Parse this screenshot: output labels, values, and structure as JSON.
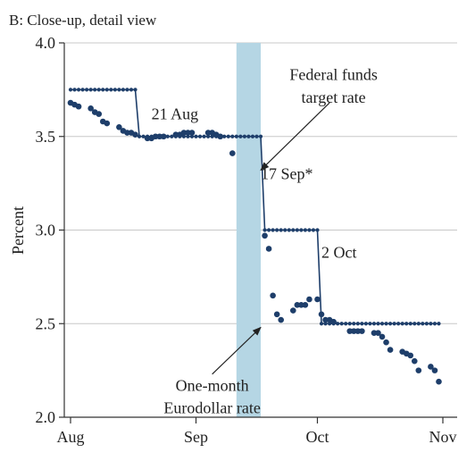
{
  "chart_data": {
    "type": "line",
    "title": "B: Close-up, detail view",
    "ylabel": "Percent",
    "xlabel": "",
    "x_axis_type": "date",
    "xlim": [
      "2007-08-01",
      "2007-11-01"
    ],
    "ylim": [
      2.0,
      4.0
    ],
    "x_tick_labels": [
      {
        "label": "Aug",
        "date": "2007-08-01"
      },
      {
        "label": "Sep",
        "date": "2007-09-01"
      },
      {
        "label": "Oct",
        "date": "2007-10-01"
      },
      {
        "label": "Nov",
        "date": "2007-11-01"
      }
    ],
    "y_ticks": [
      2.0,
      2.5,
      3.0,
      3.5,
      4.0
    ],
    "y_tick_labels": [
      "2.0",
      "2.5",
      "3.0",
      "3.5",
      "4.0"
    ],
    "grid": true,
    "shaded_region": {
      "start": "2007-09-11",
      "end": "2007-09-17",
      "color": "#b5d6e4"
    },
    "colors": {
      "series": "#1e3e6a",
      "shade": "#b5d6e4",
      "axis": "#333333",
      "grid": "#c8c8c8"
    },
    "series": [
      {
        "name": "Federal funds target rate",
        "style": "line-with-markers",
        "steps": [
          {
            "from": "2007-08-01",
            "to": "2007-08-17",
            "value": 3.75
          },
          {
            "from": "2007-08-18",
            "to": "2007-09-17",
            "value": 3.5
          },
          {
            "from": "2007-09-18",
            "to": "2007-10-01",
            "value": 3.0
          },
          {
            "from": "2007-10-02",
            "to": "2007-10-31",
            "value": 2.5
          }
        ]
      },
      {
        "name": "One-month Eurodollar rate",
        "style": "scatter",
        "points": [
          [
            "2007-08-01",
            3.68
          ],
          [
            "2007-08-02",
            3.67
          ],
          [
            "2007-08-03",
            3.66
          ],
          [
            "2007-08-06",
            3.65
          ],
          [
            "2007-08-07",
            3.63
          ],
          [
            "2007-08-08",
            3.62
          ],
          [
            "2007-08-09",
            3.58
          ],
          [
            "2007-08-10",
            3.57
          ],
          [
            "2007-08-13",
            3.55
          ],
          [
            "2007-08-14",
            3.53
          ],
          [
            "2007-08-15",
            3.52
          ],
          [
            "2007-08-16",
            3.52
          ],
          [
            "2007-08-17",
            3.51
          ],
          [
            "2007-08-20",
            3.49
          ],
          [
            "2007-08-21",
            3.49
          ],
          [
            "2007-08-22",
            3.5
          ],
          [
            "2007-08-23",
            3.5
          ],
          [
            "2007-08-24",
            3.5
          ],
          [
            "2007-08-27",
            3.51
          ],
          [
            "2007-08-28",
            3.51
          ],
          [
            "2007-08-29",
            3.52
          ],
          [
            "2007-08-30",
            3.52
          ],
          [
            "2007-08-31",
            3.52
          ],
          [
            "2007-09-04",
            3.52
          ],
          [
            "2007-09-05",
            3.52
          ],
          [
            "2007-09-06",
            3.51
          ],
          [
            "2007-09-07",
            3.5
          ],
          [
            "2007-09-10",
            3.41
          ],
          [
            "2007-09-18",
            2.97
          ],
          [
            "2007-09-19",
            2.9
          ],
          [
            "2007-09-20",
            2.65
          ],
          [
            "2007-09-21",
            2.55
          ],
          [
            "2007-09-22",
            2.52
          ],
          [
            "2007-09-25",
            2.57
          ],
          [
            "2007-09-26",
            2.6
          ],
          [
            "2007-09-27",
            2.6
          ],
          [
            "2007-09-28",
            2.6
          ],
          [
            "2007-09-29",
            2.63
          ],
          [
            "2007-10-01",
            2.63
          ],
          [
            "2007-10-02",
            2.55
          ],
          [
            "2007-10-03",
            2.52
          ],
          [
            "2007-10-04",
            2.52
          ],
          [
            "2007-10-05",
            2.51
          ],
          [
            "2007-10-09",
            2.46
          ],
          [
            "2007-10-10",
            2.46
          ],
          [
            "2007-10-11",
            2.46
          ],
          [
            "2007-10-12",
            2.46
          ],
          [
            "2007-10-15",
            2.45
          ],
          [
            "2007-10-16",
            2.45
          ],
          [
            "2007-10-17",
            2.43
          ],
          [
            "2007-10-18",
            2.4
          ],
          [
            "2007-10-19",
            2.36
          ],
          [
            "2007-10-22",
            2.35
          ],
          [
            "2007-10-23",
            2.34
          ],
          [
            "2007-10-24",
            2.33
          ],
          [
            "2007-10-25",
            2.3
          ],
          [
            "2007-10-26",
            2.25
          ],
          [
            "2007-10-29",
            2.27
          ],
          [
            "2007-10-30",
            2.25
          ],
          [
            "2007-10-31",
            2.19
          ]
        ]
      }
    ],
    "annotations": [
      {
        "text": "21 Aug",
        "date": "2007-08-21",
        "y": 3.62
      },
      {
        "text": "17 Sep*",
        "date": "2007-09-17",
        "y": 3.3
      },
      {
        "text": "2 Oct",
        "date": "2007-10-02",
        "y": 2.88
      },
      {
        "text": "Federal funds",
        "date": "2007-10-05",
        "y": 3.83,
        "anchor": "middle"
      },
      {
        "text": "target rate",
        "date": "2007-10-05",
        "y": 3.71,
        "anchor": "middle"
      },
      {
        "text": "One-month",
        "date": "2007-09-05",
        "y": 2.17,
        "anchor": "middle"
      },
      {
        "text": "Eurodollar rate",
        "date": "2007-09-05",
        "y": 2.05,
        "anchor": "middle"
      }
    ],
    "arrows": [
      {
        "from_date": "2007-10-04",
        "from_y": 3.68,
        "to_date": "2007-09-17",
        "to_y": 3.32
      },
      {
        "from_date": "2007-09-05",
        "from_y": 2.23,
        "to_date": "2007-09-17",
        "to_y": 2.48
      }
    ]
  }
}
